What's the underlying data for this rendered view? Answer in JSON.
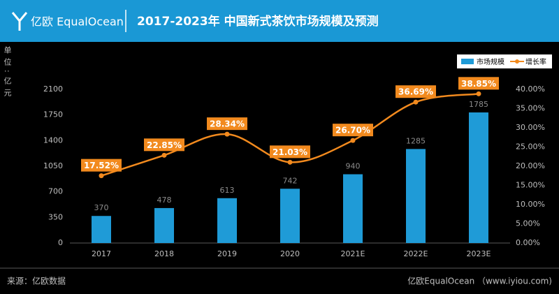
{
  "header": {
    "logo_text": "亿欧 EqualOcean"
  },
  "chart_data": {
    "type": "combo",
    "title": "2017-2023年 中国新式茶饮市场规模及预测",
    "y_unit": "单位:亿元",
    "categories": [
      "2017",
      "2018",
      "2019",
      "2020",
      "2021E",
      "2022E",
      "2023E"
    ],
    "series": [
      {
        "name": "市场规模",
        "type": "bar",
        "color": "#1f9bd7",
        "values": [
          370,
          478,
          613,
          742,
          940,
          1285,
          1785
        ]
      },
      {
        "name": "增长率",
        "type": "line",
        "axis": "y2",
        "color": "#f28a1e",
        "values": [
          17.52,
          22.85,
          28.34,
          21.03,
          26.7,
          36.69,
          38.85
        ],
        "value_labels": [
          "17.52%",
          "22.85%",
          "28.34%",
          "21.03%",
          "26.70%",
          "36.69%",
          "38.85%"
        ]
      }
    ],
    "ylim": [
      0,
      2100
    ],
    "yticks": [
      0,
      350,
      700,
      1050,
      1400,
      1750,
      2100
    ],
    "y2lim": [
      0,
      40
    ],
    "y2ticks": [
      {
        "value": 0,
        "label": "0.00%"
      },
      {
        "value": 5,
        "label": "5.00%"
      },
      {
        "value": 10,
        "label": "10.00%"
      },
      {
        "value": 15,
        "label": "15.00%"
      },
      {
        "value": 20,
        "label": "20.00%"
      },
      {
        "value": 25,
        "label": "25.00%"
      },
      {
        "value": 30,
        "label": "30.00%"
      },
      {
        "value": 35,
        "label": "35.00%"
      },
      {
        "value": 40,
        "label": "40.00%"
      }
    ],
    "legend": "top-right",
    "grid": false
  },
  "footer": {
    "source": "来源：亿欧数据",
    "credit": "亿欧EqualOcean （www.iyiou.com)"
  }
}
